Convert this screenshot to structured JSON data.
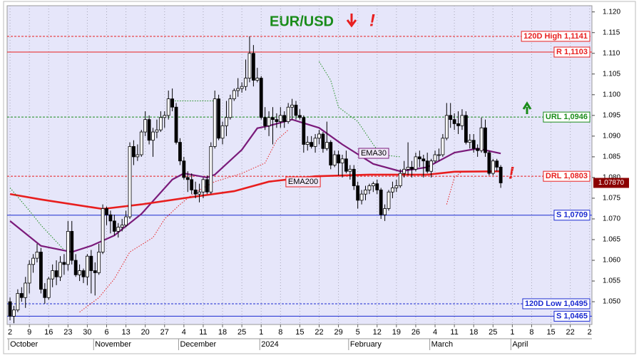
{
  "chart_data": {
    "type": "candlestick",
    "title": "EUR/USD",
    "annotations": [
      "!",
      "!"
    ],
    "up_color": "#ffffff",
    "down_color": "#000000",
    "xlim": [
      -0.75,
      150.6
    ],
    "ylim": [
      1.0445,
      1.1215
    ],
    "yticks": [
      {
        "value": 1.05,
        "label": "1.050"
      },
      1.055,
      {
        "value": 1.06,
        "label": "1.060"
      },
      1.065,
      {
        "value": 1.07,
        "label": "1.070"
      },
      1.075,
      {
        "value": 1.08,
        "label": "1.080"
      },
      1.085,
      {
        "value": 1.09,
        "label": "1.090"
      },
      1.095,
      {
        "value": 1.1,
        "label": "1.100"
      },
      1.105,
      {
        "value": 1.11,
        "label": "1.110"
      },
      1.115,
      {
        "value": 1.12,
        "label": "1.120"
      }
    ],
    "x_ticks": [
      {
        "value": 0,
        "label": "2"
      },
      {
        "value": 5,
        "label": "9"
      },
      {
        "value": 10,
        "label": "16"
      },
      {
        "value": 15,
        "label": "23"
      },
      {
        "value": 20,
        "label": "30"
      },
      {
        "value": 25,
        "label": "6"
      },
      {
        "value": 30,
        "label": "13"
      },
      {
        "value": 35,
        "label": "20"
      },
      {
        "value": 40,
        "label": "27"
      },
      {
        "value": 45,
        "label": "4"
      },
      {
        "value": 50,
        "label": "11"
      },
      {
        "value": 55,
        "label": "18"
      },
      {
        "value": 60,
        "label": "25"
      },
      {
        "value": 65,
        "label": "1"
      },
      {
        "value": 70,
        "label": "8"
      },
      {
        "value": 75,
        "label": "15"
      },
      {
        "value": 80,
        "label": "22"
      },
      {
        "value": 85,
        "label": "29"
      },
      {
        "value": 90,
        "label": "5"
      },
      {
        "value": 95,
        "label": "12"
      },
      {
        "value": 100,
        "label": "19"
      },
      {
        "value": 105,
        "label": "26"
      },
      {
        "value": 110,
        "label": "4"
      },
      {
        "value": 115,
        "label": "11"
      },
      {
        "value": 120,
        "label": "18"
      },
      {
        "value": 125,
        "label": "25"
      },
      {
        "value": 130,
        "label": "1"
      },
      {
        "value": 135,
        "label": "8"
      },
      {
        "value": 140,
        "label": "15"
      },
      {
        "value": 145,
        "label": "22"
      },
      {
        "value": 150,
        "label": "2"
      }
    ],
    "months": [
      {
        "value": 0,
        "label": "October"
      },
      {
        "value": 22,
        "label": "November"
      },
      {
        "value": 44,
        "label": "December"
      },
      {
        "value": 65,
        "label": "2024"
      },
      {
        "value": 88,
        "label": "February"
      },
      {
        "value": 109,
        "label": "March"
      },
      {
        "value": 130,
        "label": "April"
      }
    ],
    "ohlc": [
      [
        1.05,
        1.051,
        1.0455,
        1.0465
      ],
      [
        1.0465,
        1.049,
        1.0448,
        1.048
      ],
      [
        1.048,
        1.053,
        1.0475,
        1.052
      ],
      [
        1.052,
        1.0535,
        1.05,
        1.051
      ],
      [
        1.051,
        1.056,
        1.0485,
        1.0545
      ],
      [
        1.0545,
        1.06,
        1.052,
        1.059
      ],
      [
        1.059,
        1.0615,
        1.057,
        1.0605
      ],
      [
        1.0605,
        1.064,
        1.0595,
        1.062
      ],
      [
        1.062,
        1.063,
        1.052,
        1.053
      ],
      [
        1.053,
        1.0545,
        1.0495,
        1.051
      ],
      [
        1.051,
        1.056,
        1.0505,
        1.0555
      ],
      [
        1.0555,
        1.059,
        1.0535,
        1.0575
      ],
      [
        1.0575,
        1.06,
        1.054,
        1.056
      ],
      [
        1.056,
        1.061,
        1.055,
        1.0595
      ],
      [
        1.0595,
        1.0615,
        1.0565,
        1.059
      ],
      [
        1.059,
        1.0695,
        1.0575,
        1.067
      ],
      [
        1.067,
        1.0695,
        1.059,
        1.06
      ],
      [
        1.06,
        1.0615,
        1.056,
        1.0565
      ],
      [
        1.0565,
        1.059,
        1.055,
        1.0575
      ],
      [
        1.0575,
        1.058,
        1.0545,
        1.056
      ],
      [
        1.056,
        1.0615,
        1.054,
        1.061
      ],
      [
        1.061,
        1.0625,
        1.052,
        1.0575
      ],
      [
        1.0575,
        1.0595,
        1.0515,
        1.057
      ],
      [
        1.057,
        1.064,
        1.0565,
        1.062
      ],
      [
        1.062,
        1.0735,
        1.0615,
        1.0725
      ],
      [
        1.0725,
        1.073,
        1.0685,
        1.071
      ],
      [
        1.071,
        1.072,
        1.0665,
        1.0695
      ],
      [
        1.0695,
        1.071,
        1.066,
        1.067
      ],
      [
        1.067,
        1.069,
        1.0655,
        1.068
      ],
      [
        1.068,
        1.07,
        1.067,
        1.0685
      ],
      [
        1.0685,
        1.072,
        1.068,
        1.0705
      ],
      [
        1.0705,
        1.0885,
        1.07,
        1.0875
      ],
      [
        1.0875,
        1.089,
        1.083,
        1.085
      ],
      [
        1.085,
        1.088,
        1.084,
        1.0855
      ],
      [
        1.0855,
        1.0915,
        1.085,
        1.091
      ],
      [
        1.091,
        1.096,
        1.09,
        1.094
      ],
      [
        1.094,
        1.095,
        1.088,
        1.089
      ],
      [
        1.089,
        1.092,
        1.085,
        1.091
      ],
      [
        1.091,
        1.094,
        1.0895,
        1.0915
      ],
      [
        1.0915,
        1.096,
        1.091,
        1.0945
      ],
      [
        1.0945,
        1.096,
        1.092,
        1.095
      ],
      [
        1.095,
        1.101,
        1.094,
        1.099
      ],
      [
        1.099,
        1.1015,
        1.096,
        1.097
      ],
      [
        1.097,
        1.098,
        1.088,
        1.0885
      ],
      [
        1.0885,
        1.0895,
        1.083,
        1.084
      ],
      [
        1.084,
        1.085,
        1.0795,
        1.08
      ],
      [
        1.08,
        1.0815,
        1.0765,
        1.0795
      ],
      [
        1.0795,
        1.081,
        1.076,
        1.077
      ],
      [
        1.077,
        1.079,
        1.075,
        1.076
      ],
      [
        1.076,
        1.0785,
        1.074,
        1.0765
      ],
      [
        1.0765,
        1.08,
        1.075,
        1.0795
      ],
      [
        1.0795,
        1.0805,
        1.076,
        1.0765
      ],
      [
        1.0765,
        1.0885,
        1.076,
        1.0875
      ],
      [
        1.0875,
        1.101,
        1.087,
        1.099
      ],
      [
        1.099,
        1.1,
        1.089,
        1.0895
      ],
      [
        1.0895,
        1.0935,
        1.088,
        1.0925
      ],
      [
        1.0925,
        1.0985,
        1.09,
        1.0945
      ],
      [
        1.0945,
        1.1,
        1.094,
        1.099
      ],
      [
        1.099,
        1.1015,
        1.0985,
        1.101
      ],
      [
        1.101,
        1.104,
        1.0995,
        1.1015
      ],
      [
        1.1015,
        1.103,
        1.1005,
        1.102
      ],
      [
        1.102,
        1.1085,
        1.101,
        1.104
      ],
      [
        1.104,
        1.1141,
        1.103,
        1.11
      ],
      [
        1.11,
        1.112,
        1.102,
        1.1035
      ],
      [
        1.1035,
        1.1065,
        1.103,
        1.104
      ],
      [
        1.104,
        1.1045,
        1.094,
        1.0945
      ],
      [
        1.0945,
        1.097,
        1.0915,
        1.0925
      ],
      [
        1.0925,
        1.096,
        1.09,
        1.0945
      ],
      [
        1.0945,
        1.097,
        1.088,
        1.094
      ],
      [
        1.094,
        1.0955,
        1.092,
        1.0935
      ],
      [
        1.0935,
        1.097,
        1.092,
        1.095
      ],
      [
        1.095,
        1.096,
        1.092,
        1.0935
      ],
      [
        1.0935,
        1.098,
        1.093,
        1.097
      ],
      [
        1.097,
        1.099,
        1.094,
        1.0975
      ],
      [
        1.0975,
        1.0985,
        1.094,
        1.095
      ],
      [
        1.095,
        1.0965,
        1.094,
        1.0945
      ],
      [
        1.0945,
        1.095,
        1.086,
        1.088
      ],
      [
        1.088,
        1.09,
        1.0865,
        1.0885
      ],
      [
        1.0885,
        1.09,
        1.087,
        1.0875
      ],
      [
        1.0875,
        1.0905,
        1.086,
        1.0895
      ],
      [
        1.0895,
        1.0915,
        1.088,
        1.0905
      ],
      [
        1.0905,
        1.091,
        1.086,
        1.087
      ],
      [
        1.087,
        1.0935,
        1.0865,
        1.0885
      ],
      [
        1.0885,
        1.089,
        1.082,
        1.083
      ],
      [
        1.083,
        1.0865,
        1.0825,
        1.0855
      ],
      [
        1.0855,
        1.0865,
        1.0805,
        1.0835
      ],
      [
        1.0835,
        1.0855,
        1.08,
        1.0845
      ],
      [
        1.0845,
        1.0865,
        1.081,
        1.0815
      ],
      [
        1.0815,
        1.083,
        1.0795,
        1.082
      ],
      [
        1.082,
        1.083,
        1.077,
        1.078
      ],
      [
        1.078,
        1.079,
        1.0725,
        1.0745
      ],
      [
        1.0745,
        1.077,
        1.0735,
        1.076
      ],
      [
        1.076,
        1.078,
        1.0745,
        1.077
      ],
      [
        1.077,
        1.0785,
        1.076,
        1.078
      ],
      [
        1.078,
        1.079,
        1.0765,
        1.0785
      ],
      [
        1.0785,
        1.0795,
        1.076,
        1.077
      ],
      [
        1.077,
        1.0775,
        1.07,
        1.071
      ],
      [
        1.071,
        1.0735,
        1.0695,
        1.0725
      ],
      [
        1.0725,
        1.077,
        1.072,
        1.0765
      ],
      [
        1.0765,
        1.079,
        1.075,
        1.0775
      ],
      [
        1.0775,
        1.0795,
        1.0765,
        1.078
      ],
      [
        1.078,
        1.082,
        1.0775,
        1.081
      ],
      [
        1.081,
        1.084,
        1.08,
        1.082
      ],
      [
        1.082,
        1.0885,
        1.0805,
        1.0825
      ],
      [
        1.0825,
        1.084,
        1.08,
        1.082
      ],
      [
        1.082,
        1.086,
        1.0815,
        1.085
      ],
      [
        1.085,
        1.0865,
        1.0825,
        1.0845
      ],
      [
        1.0845,
        1.0855,
        1.08,
        1.084
      ],
      [
        1.084,
        1.086,
        1.081,
        1.0815
      ],
      [
        1.0815,
        1.0845,
        1.08,
        1.084
      ],
      [
        1.084,
        1.0865,
        1.0835,
        1.0855
      ],
      [
        1.0855,
        1.087,
        1.084,
        1.0855
      ],
      [
        1.0855,
        1.0905,
        1.085,
        1.0895
      ],
      [
        1.0895,
        1.098,
        1.089,
        1.095
      ],
      [
        1.095,
        1.098,
        1.092,
        1.094
      ],
      [
        1.094,
        1.0955,
        1.0915,
        1.093
      ],
      [
        1.093,
        1.096,
        1.0905,
        1.0925
      ],
      [
        1.0925,
        1.0965,
        1.0915,
        1.095
      ],
      [
        1.095,
        1.096,
        1.088,
        1.0885
      ],
      [
        1.0885,
        1.0905,
        1.087,
        1.089
      ],
      [
        1.089,
        1.0905,
        1.086,
        1.087
      ],
      [
        1.087,
        1.088,
        1.085,
        1.0865
      ],
      [
        1.0865,
        1.0945,
        1.086,
        1.092
      ],
      [
        1.092,
        1.094,
        1.085,
        1.086
      ],
      [
        1.086,
        1.0865,
        1.0805,
        1.081
      ],
      [
        1.081,
        1.0845,
        1.0805,
        1.084
      ],
      [
        1.084,
        1.0845,
        1.0815,
        1.0825
      ],
      [
        1.0825,
        1.083,
        1.0775,
        1.0787
      ]
    ],
    "lines": [
      {
        "name": "EMA30",
        "color": "#7a1a7a",
        "width": 2.2,
        "style": "solid",
        "x": [
          0,
          8,
          16,
          21,
          27,
          34,
          42,
          45,
          51,
          53,
          60,
          64,
          67,
          73,
          80,
          86,
          94,
          101,
          108,
          115,
          121,
          127
        ],
        "values": [
          1.0695,
          1.0635,
          1.062,
          1.0635,
          1.066,
          1.0712,
          1.0795,
          1.081,
          1.08,
          1.0807,
          1.0867,
          1.0919,
          1.0925,
          1.094,
          1.092,
          1.088,
          1.0833,
          1.0815,
          1.0825,
          1.086,
          1.087,
          1.0858
        ]
      },
      {
        "name": "EMA200",
        "color": "#e81e1e",
        "width": 2.6,
        "style": "solid",
        "x": [
          0,
          8,
          24,
          34,
          45,
          58,
          67,
          79,
          93,
          108,
          115,
          127
        ],
        "values": [
          1.076,
          1.0747,
          1.0724,
          1.0735,
          1.075,
          1.0767,
          1.079,
          1.0803,
          1.0807,
          1.0807,
          1.0814,
          1.0815
        ]
      },
      {
        "color": "#e81e1e",
        "width": 1,
        "style": "dotted",
        "x": [
          18,
          23,
          27,
          31,
          37,
          40,
          44,
          48,
          53,
          60,
          66,
          69,
          72,
          null,
          113,
          115,
          117
        ],
        "values": [
          1.0475,
          1.051,
          1.0555,
          1.062,
          1.0655,
          1.07,
          1.0735,
          1.0765,
          1.079,
          1.081,
          1.0835,
          1.089,
          1.0915,
          null,
          1.0735,
          1.08,
          1.0815
        ]
      },
      {
        "color": "#1a8c1a",
        "width": 1,
        "style": "dotted",
        "x": [
          0,
          5,
          8,
          14,
          null,
          42,
          53,
          null,
          80,
          83,
          85,
          90,
          94,
          96,
          101
        ],
        "values": [
          1.0775,
          1.072,
          1.0685,
          1.0625,
          null,
          1.0985,
          1.0985,
          null,
          1.108,
          1.1035,
          1.097,
          1.0935,
          1.088,
          1.0855,
          1.085
        ]
      }
    ],
    "levels": [
      {
        "value": 1.1141,
        "label": "120D High 1,1141",
        "color": "#e81e1e",
        "style": "dashed"
      },
      {
        "value": 1.1103,
        "label": "R 1,1103",
        "color": "#e81e1e",
        "style": "solid"
      },
      {
        "value": 1.0946,
        "label": "URL 1,0946",
        "color": "#1a8c1a",
        "style": "dashed"
      },
      {
        "value": 1.0803,
        "label": "DRL 1,0803",
        "color": "#e81e1e",
        "style": "dashed"
      },
      {
        "value": 1.0709,
        "label": "S 1,0709",
        "color": "#1a2ad0",
        "style": "solid"
      },
      {
        "value": 1.0495,
        "label": "120D Low 1,0495",
        "color": "#1a2ad0",
        "style": "dashed"
      },
      {
        "value": 1.0465,
        "label": "S 1,0465",
        "color": "#1a2ad0",
        "style": "solid"
      }
    ],
    "last_price": {
      "value": 1.0787,
      "label": "1.07870"
    }
  }
}
